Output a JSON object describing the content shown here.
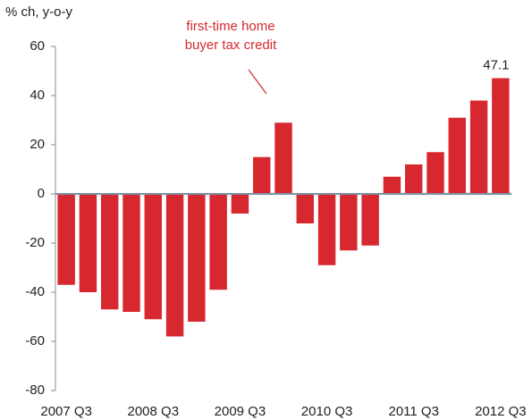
{
  "chart_data": {
    "type": "bar",
    "y_label": "% ch, y-o-y",
    "annotation": [
      "first-time home",
      "buyer tax credit"
    ],
    "categories": [
      "2007 Q3",
      null,
      null,
      null,
      "2008 Q3",
      null,
      null,
      null,
      "2009 Q3",
      null,
      null,
      null,
      "2010 Q3",
      null,
      null,
      null,
      "2011 Q3",
      null,
      null,
      null,
      "2012 Q3"
    ],
    "values": [
      -37,
      -40,
      -47,
      -48,
      -51,
      -58,
      -52,
      -39,
      -8,
      15,
      29,
      -12,
      -29,
      -23,
      -21,
      7,
      12,
      17,
      31,
      38,
      47.1
    ],
    "labeled_points": [
      20
    ],
    "color": "#d7282f",
    "annotation_color": "#d7282f",
    "ylim": [
      -80,
      60
    ],
    "yticks": [
      60,
      40,
      20,
      0,
      -20,
      -40,
      -60,
      -80
    ],
    "grid": false
  }
}
